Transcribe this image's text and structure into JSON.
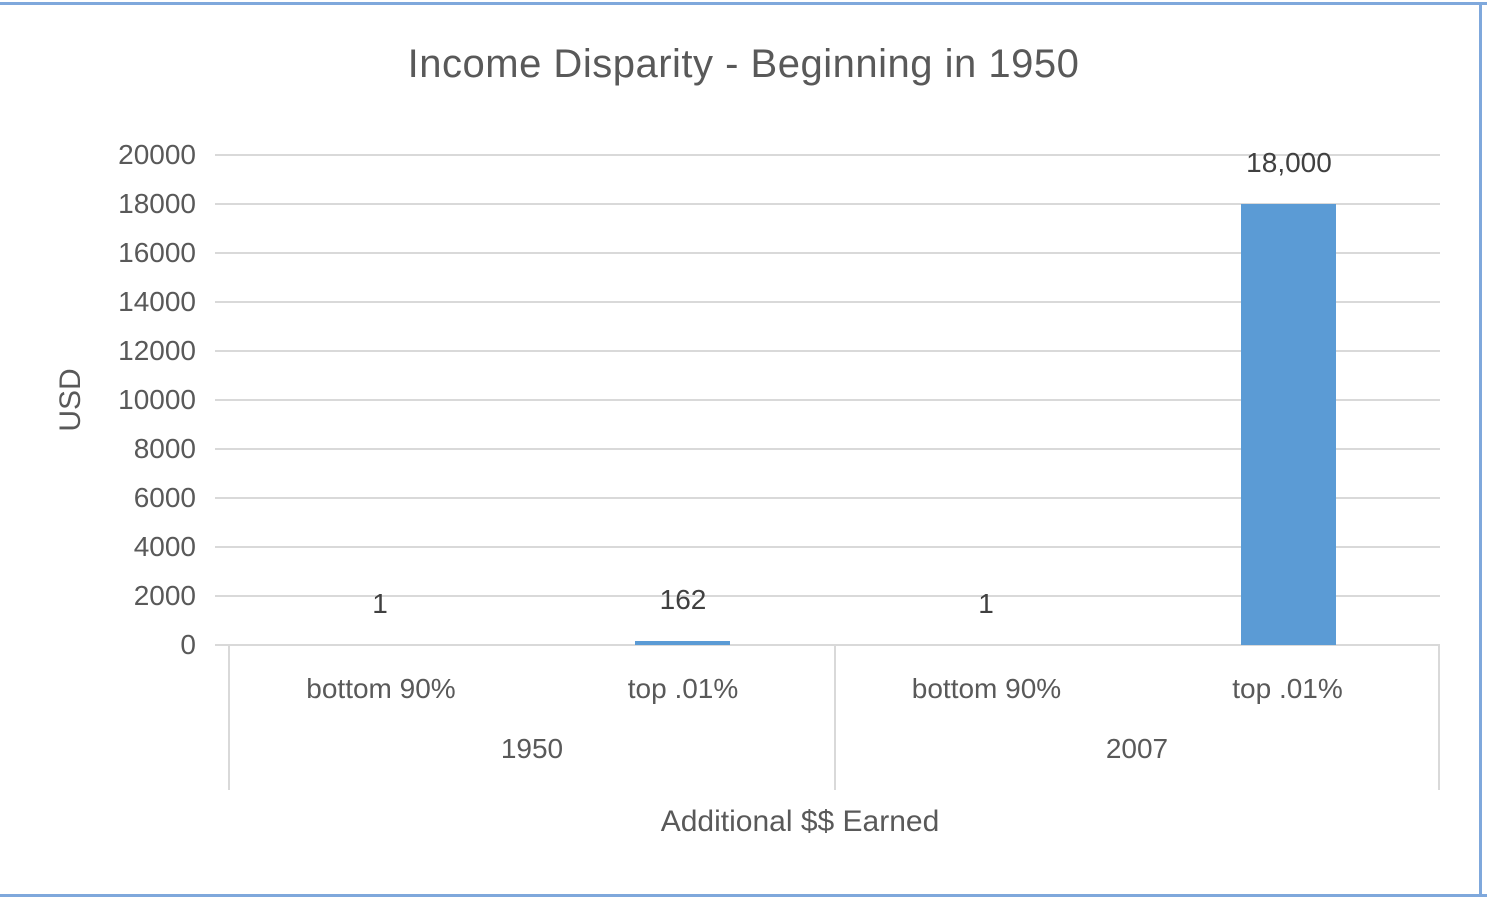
{
  "chart_data": {
    "type": "bar",
    "title": "Income Disparity - Beginning in 1950",
    "ylabel": "USD",
    "xlabel": "Additional $$ Earned",
    "ylim": [
      0,
      20000
    ],
    "ytick_step": 2000,
    "yticks": [
      20000,
      18000,
      16000,
      14000,
      12000,
      10000,
      8000,
      6000,
      4000,
      2000,
      0
    ],
    "categories": [
      "bottom 90%",
      "top .01%",
      "bottom 90%",
      "top .01%"
    ],
    "groups": [
      {
        "label": "1950",
        "categories": [
          "bottom 90%",
          "top .01%"
        ],
        "values": [
          1,
          162
        ],
        "value_labels": [
          "1",
          "162"
        ]
      },
      {
        "label": "2007",
        "categories": [
          "bottom 90%",
          "top .01%"
        ],
        "values": [
          1,
          18000
        ],
        "value_labels": [
          "1",
          "18,000"
        ]
      }
    ],
    "values": [
      1,
      162,
      1,
      18000
    ],
    "value_labels": [
      "1",
      "162",
      "1",
      "18,000"
    ],
    "grid": true,
    "legend_position": "none",
    "bar_color": "#5b9bd5"
  },
  "colors": {
    "bar": "#5b9bd5",
    "frame_border": "#7fa8dc",
    "gridline": "#d9d9d9",
    "axis_text": "#595959",
    "data_label_text": "#404040",
    "background": "#ffffff"
  }
}
